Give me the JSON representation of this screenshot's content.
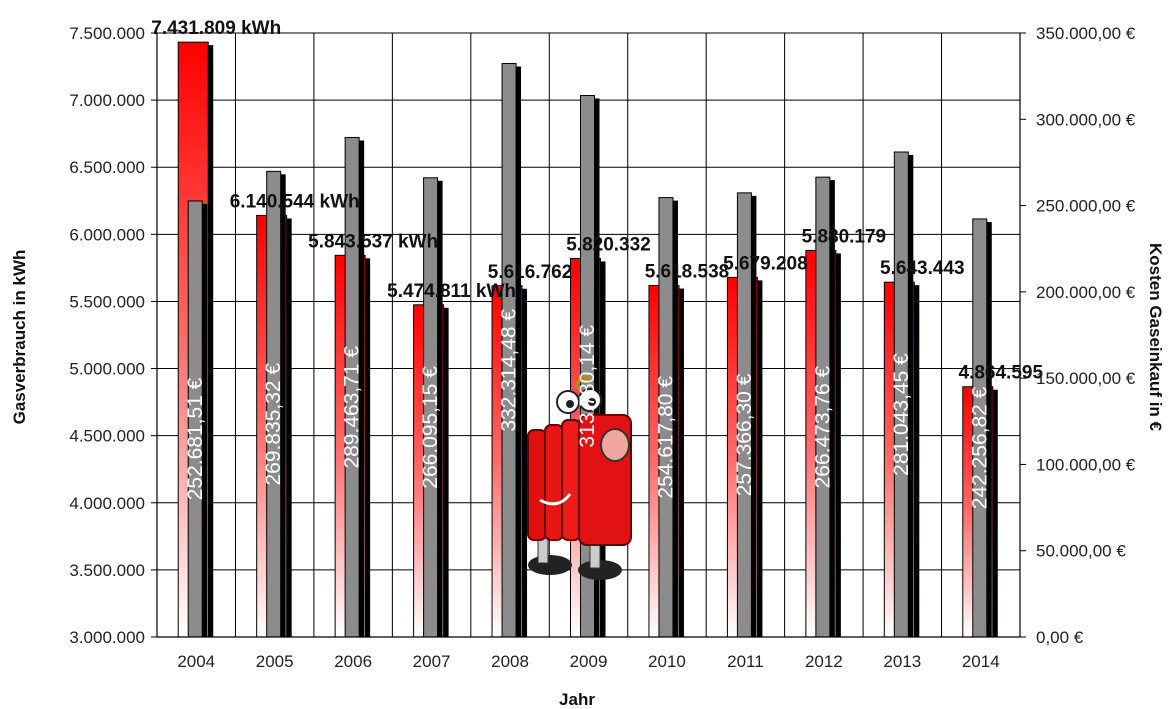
{
  "chart_data": {
    "type": "bar",
    "categories": [
      "2004",
      "2005",
      "2006",
      "2007",
      "2008",
      "2009",
      "2010",
      "2011",
      "2012",
      "2013",
      "2014"
    ],
    "series": [
      {
        "axis": "left",
        "color": "#ff0000",
        "values": [
          7431809,
          6140544,
          5843537,
          5474811,
          5616762,
          5820332,
          5618538,
          5679208,
          5880179,
          5643443,
          4864595
        ],
        "labels": [
          "7.431.809 kWh",
          "6.140.544 kWh",
          "5.843.537 kWh",
          "5.474.811 kWh",
          "5.616.762",
          "5.820.332",
          "5.618.538",
          "5.679.208",
          "5.880.179",
          "5.643.443",
          "4.864.595"
        ]
      },
      {
        "axis": "right",
        "color": "#8c8c8c",
        "values": [
          252681.51,
          269835.32,
          289463.71,
          266095.15,
          332314.48,
          313780.14,
          254617.8,
          257366.3,
          266473.76,
          281043.45,
          242256.82
        ],
        "labels": [
          "252.681,51 €",
          "269.835,32 €",
          "289.463,71 €",
          "266.095,15 €",
          "332.314,48 €",
          "313.780,14 €",
          "254.617,80 €",
          "257.366,30 €",
          "266.473,76 €",
          "281.043,45 €",
          "242.256,82 €"
        ]
      }
    ],
    "xlabel": "Jahr",
    "ylabel": "Gasverbrauch in kWh",
    "y2label": "Kosten Gaseinkauf in €",
    "ylim": [
      3000000,
      7500000
    ],
    "y2lim": [
      0,
      350000
    ],
    "yticks": [
      "3.000.000",
      "3.500.000",
      "4.000.000",
      "4.500.000",
      "5.000.000",
      "5.500.000",
      "6.000.000",
      "6.500.000",
      "7.000.000",
      "7.500.000"
    ],
    "y2ticks": [
      "0,00 €",
      "50.000,00 €",
      "100.000,00 €",
      "150.000,00 €",
      "200.000,00 €",
      "250.000,00 €",
      "300.000,00 €",
      "350.000,00 €"
    ],
    "grid": true,
    "legend": "none"
  }
}
